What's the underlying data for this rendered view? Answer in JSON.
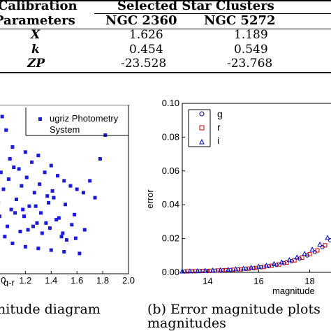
{
  "table": {
    "header_left_line1": "Calibration",
    "header_left_line2": "Parameters",
    "header_group": "Selected Star Clusters",
    "col1": "NGC 2360",
    "col2": "NGC 5272",
    "rows": [
      {
        "param": "X",
        "v1": "1.626",
        "v2": "1.189"
      },
      {
        "param": "k",
        "v1": "0.454",
        "v2": "0.549"
      },
      {
        "param": "ZP",
        "v1": "-23.528",
        "v2": "-23.768"
      }
    ]
  },
  "captions": {
    "left": "nitude diagram",
    "right_line1": "(b)  Error magnitude plots",
    "right_line2": "magnitudes"
  },
  "chart_data": [
    {
      "type": "scatter",
      "title": "",
      "xlabel": "g-r",
      "ylabel": "",
      "xlim": [
        0.9,
        2.0
      ],
      "x_ticks": [
        "1.0",
        "1.2",
        "1.4",
        "1.6",
        "1.8",
        "2.0"
      ],
      "legend": {
        "label_line1": "ugriz Photometry",
        "label_line2": "System",
        "placement": "top-right"
      },
      "color": "#1a1adb",
      "series": [
        {
          "name": "ugriz Photometry System",
          "x": [
            0.95,
            1.02,
            1.05,
            0.97,
            1.1,
            1.2,
            1.08,
            1.25,
            1.3,
            1.15,
            1.35,
            1.4,
            1.45,
            1.5,
            1.55,
            1.6,
            1.65,
            1.42,
            1.38,
            1.28,
            1.18,
            1.12,
            1.0,
            0.98,
            1.06,
            1.22,
            1.33,
            1.48,
            1.52,
            1.58,
            1.7,
            1.78,
            1.82,
            1.44,
            1.36,
            1.26,
            1.16,
            1.04,
            0.96,
            1.1,
            1.2,
            1.3,
            1.4,
            1.5,
            1.62,
            1.74,
            0.99,
            1.09,
            1.19,
            1.29,
            1.39,
            1.49,
            1.59,
            1.13,
            1.23,
            1.03,
            1.32,
            1.46,
            1.56,
            1.66,
            1.27,
            1.37,
            1.17,
            1.07,
            1.01,
            1.11,
            1.21,
            1.31,
            1.41,
            1.51
          ],
          "y": [
            0.96,
            0.93,
            0.85,
            0.8,
            0.75,
            0.72,
            0.68,
            0.66,
            0.7,
            0.62,
            0.6,
            0.64,
            0.58,
            0.55,
            0.52,
            0.5,
            0.48,
            0.45,
            0.42,
            0.4,
            0.38,
            0.36,
            0.34,
            0.3,
            0.28,
            0.26,
            0.24,
            0.22,
            0.2,
            0.35,
            0.55,
            0.68,
            0.82,
            0.32,
            0.3,
            0.28,
            0.25,
            0.22,
            0.2,
            0.18,
            0.16,
            0.15,
            0.14,
            0.13,
            0.12,
            0.45,
            0.42,
            0.38,
            0.34,
            0.3,
            0.27,
            0.24,
            0.21,
            0.44,
            0.4,
            0.5,
            0.36,
            0.33,
            0.29,
            0.26,
            0.48,
            0.46,
            0.52,
            0.56,
            0.6,
            0.63,
            0.57,
            0.53,
            0.49,
            0.41
          ]
        }
      ]
    },
    {
      "type": "scatter",
      "title": "",
      "xlabel": "magnitude",
      "ylabel": "error",
      "xlim": [
        13,
        19.3
      ],
      "ylim": [
        0,
        0.1
      ],
      "x_ticks": [
        "14",
        "16",
        "18"
      ],
      "y_ticks": [
        "0.00",
        "0.02",
        "0.04",
        "0.06",
        "0.08",
        "0.10"
      ],
      "legend": {
        "placement": "top-left"
      },
      "series": [
        {
          "name": "g",
          "marker": "circle",
          "color": "#000080",
          "x": [
            13.1,
            13.4,
            13.7,
            14.0,
            14.3,
            14.6,
            14.9,
            15.2,
            15.5,
            15.8,
            16.1,
            16.4,
            16.7,
            17.0,
            17.3,
            17.6,
            17.9,
            18.2,
            18.5,
            18.8,
            19.1
          ],
          "y": [
            0.0005,
            0.0006,
            0.0007,
            0.0008,
            0.001,
            0.0012,
            0.0014,
            0.0017,
            0.002,
            0.0024,
            0.003,
            0.0036,
            0.0044,
            0.0054,
            0.0066,
            0.0081,
            0.01,
            0.012,
            0.015,
            0.019,
            0.024
          ]
        },
        {
          "name": "r",
          "marker": "square",
          "color": "#cc0000",
          "x": [
            13.2,
            13.5,
            13.8,
            14.1,
            14.4,
            14.7,
            15.0,
            15.3,
            15.6,
            15.9,
            16.2,
            16.5,
            16.8,
            17.1,
            17.4,
            17.7,
            18.0,
            18.3,
            18.6,
            18.9,
            19.2
          ],
          "y": [
            0.0006,
            0.0007,
            0.0008,
            0.0009,
            0.0011,
            0.0013,
            0.0015,
            0.0018,
            0.0022,
            0.0026,
            0.0032,
            0.0039,
            0.0047,
            0.0058,
            0.0071,
            0.0087,
            0.0107,
            0.013,
            0.016,
            0.02,
            0.025
          ]
        },
        {
          "name": "i",
          "marker": "triangle",
          "color": "#0000cc",
          "x": [
            13.0,
            13.3,
            13.6,
            13.9,
            14.2,
            14.5,
            14.8,
            15.1,
            15.4,
            15.7,
            16.0,
            16.3,
            16.6,
            16.9,
            17.2,
            17.5,
            17.8,
            18.1,
            18.4,
            18.7,
            19.0,
            19.25
          ],
          "y": [
            0.0006,
            0.0007,
            0.0008,
            0.001,
            0.0012,
            0.0014,
            0.0016,
            0.0019,
            0.0023,
            0.0028,
            0.0034,
            0.0041,
            0.005,
            0.006,
            0.0073,
            0.0089,
            0.011,
            0.0135,
            0.0165,
            0.0205,
            0.026,
            0.03
          ]
        }
      ]
    }
  ]
}
